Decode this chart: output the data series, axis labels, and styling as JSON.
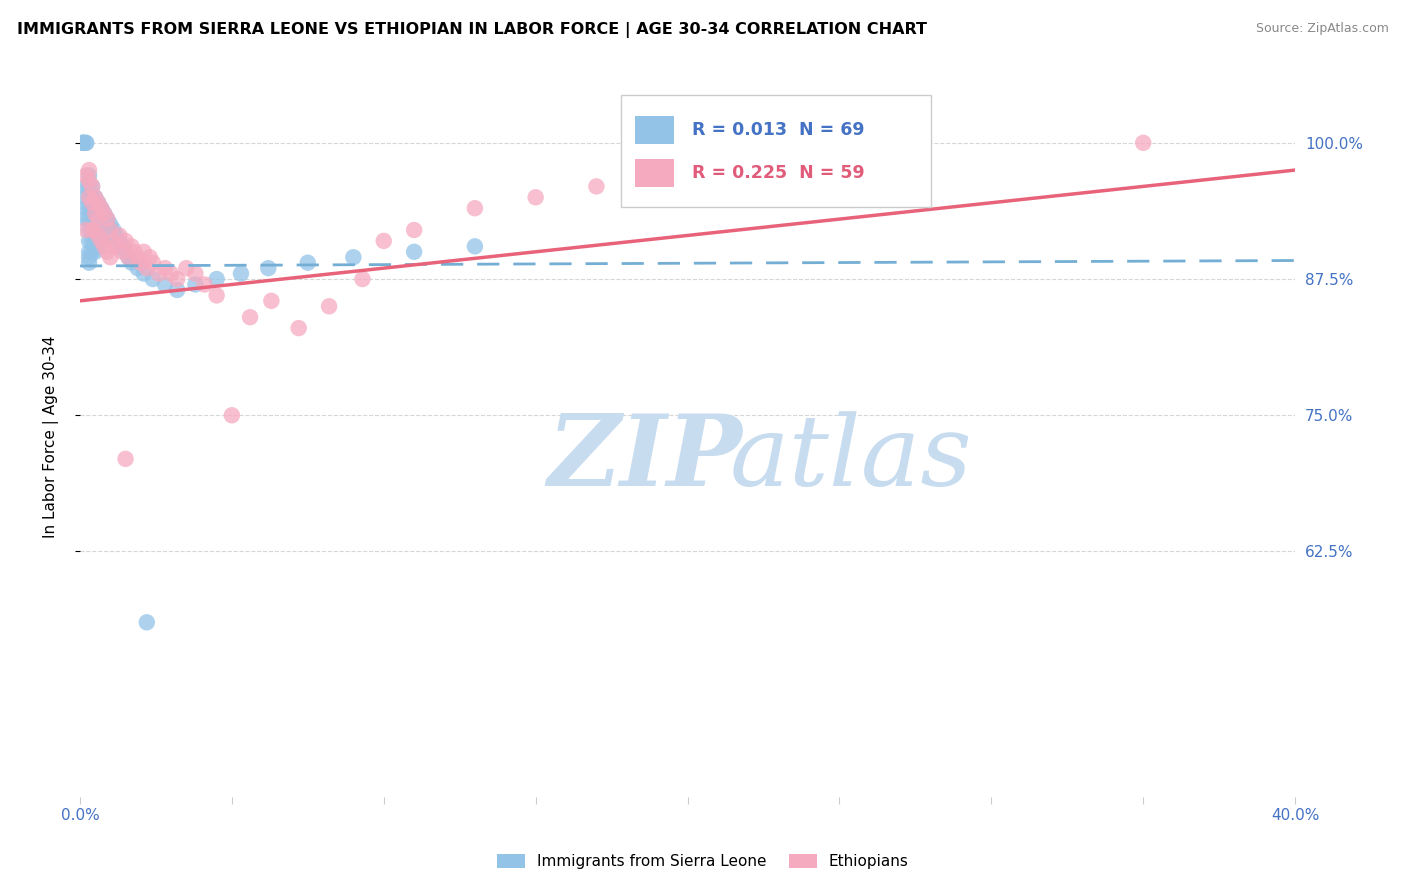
{
  "title": "IMMIGRANTS FROM SIERRA LEONE VS ETHIOPIAN IN LABOR FORCE | AGE 30-34 CORRELATION CHART",
  "source": "Source: ZipAtlas.com",
  "ylabel": "In Labor Force | Age 30-34",
  "xlim": [
    0.0,
    0.4
  ],
  "ylim": [
    0.4,
    1.06
  ],
  "yticks": [
    0.625,
    0.75,
    0.875,
    1.0
  ],
  "ytick_labels": [
    "62.5%",
    "75.0%",
    "87.5%",
    "100.0%"
  ],
  "xticks": [
    0.0,
    0.05,
    0.1,
    0.15,
    0.2,
    0.25,
    0.3,
    0.35,
    0.4
  ],
  "xtick_labels": [
    "0.0%",
    "",
    "",
    "",
    "",
    "",
    "",
    "",
    "40.0%"
  ],
  "sierra_leone_color": "#93C4E8",
  "ethiopian_color": "#F5AABF",
  "sierra_leone_line_color": "#74AED4",
  "ethiopian_line_color": "#E8637A",
  "sierra_leone_x": [
    0.001,
    0.001,
    0.001,
    0.002,
    0.002,
    0.002,
    0.002,
    0.002,
    0.002,
    0.003,
    0.003,
    0.003,
    0.003,
    0.003,
    0.003,
    0.003,
    0.003,
    0.003,
    0.003,
    0.004,
    0.004,
    0.004,
    0.004,
    0.004,
    0.004,
    0.004,
    0.005,
    0.005,
    0.005,
    0.005,
    0.005,
    0.005,
    0.006,
    0.006,
    0.006,
    0.006,
    0.006,
    0.007,
    0.007,
    0.007,
    0.007,
    0.008,
    0.008,
    0.008,
    0.009,
    0.009,
    0.01,
    0.01,
    0.011,
    0.012,
    0.013,
    0.014,
    0.015,
    0.016,
    0.017,
    0.019,
    0.021,
    0.024,
    0.028,
    0.032,
    0.038,
    0.045,
    0.053,
    0.062,
    0.075,
    0.09,
    0.11,
    0.13,
    0.022
  ],
  "sierra_leone_y": [
    1.0,
    1.0,
    1.0,
    1.0,
    1.0,
    0.96,
    0.95,
    0.94,
    0.93,
    0.97,
    0.96,
    0.95,
    0.94,
    0.93,
    0.92,
    0.91,
    0.9,
    0.895,
    0.89,
    0.96,
    0.95,
    0.94,
    0.93,
    0.92,
    0.91,
    0.9,
    0.95,
    0.94,
    0.93,
    0.92,
    0.91,
    0.9,
    0.945,
    0.935,
    0.925,
    0.915,
    0.905,
    0.94,
    0.93,
    0.92,
    0.91,
    0.935,
    0.925,
    0.915,
    0.93,
    0.92,
    0.925,
    0.915,
    0.92,
    0.915,
    0.91,
    0.905,
    0.9,
    0.895,
    0.89,
    0.885,
    0.88,
    0.875,
    0.87,
    0.865,
    0.87,
    0.875,
    0.88,
    0.885,
    0.89,
    0.895,
    0.9,
    0.905,
    0.56
  ],
  "ethiopian_x": [
    0.002,
    0.002,
    0.003,
    0.003,
    0.003,
    0.004,
    0.004,
    0.004,
    0.005,
    0.005,
    0.005,
    0.006,
    0.006,
    0.006,
    0.007,
    0.007,
    0.008,
    0.008,
    0.009,
    0.009,
    0.01,
    0.01,
    0.011,
    0.012,
    0.013,
    0.014,
    0.015,
    0.016,
    0.017,
    0.018,
    0.019,
    0.02,
    0.021,
    0.022,
    0.023,
    0.024,
    0.026,
    0.028,
    0.03,
    0.032,
    0.035,
    0.038,
    0.041,
    0.045,
    0.05,
    0.056,
    0.063,
    0.072,
    0.082,
    0.093,
    0.1,
    0.11,
    0.13,
    0.15,
    0.17,
    0.195,
    0.22,
    0.35,
    0.015
  ],
  "ethiopian_y": [
    0.92,
    0.97,
    0.95,
    0.965,
    0.975,
    0.92,
    0.945,
    0.96,
    0.935,
    0.95,
    0.92,
    0.945,
    0.93,
    0.915,
    0.94,
    0.91,
    0.935,
    0.905,
    0.93,
    0.9,
    0.92,
    0.895,
    0.91,
    0.905,
    0.915,
    0.9,
    0.91,
    0.895,
    0.905,
    0.9,
    0.895,
    0.89,
    0.9,
    0.885,
    0.895,
    0.89,
    0.88,
    0.885,
    0.88,
    0.875,
    0.885,
    0.88,
    0.87,
    0.86,
    0.75,
    0.84,
    0.855,
    0.83,
    0.85,
    0.875,
    0.91,
    0.92,
    0.94,
    0.95,
    0.96,
    0.97,
    0.985,
    1.0,
    0.71
  ],
  "legend_text1": "R = 0.013  N = 69",
  "legend_text2": "R = 0.225  N = 59",
  "legend_color1": "#4472C4",
  "legend_color2": "#E05C7A",
  "watermark_zip_color": "#C8DCF0",
  "watermark_atlas_color": "#C8DCF0"
}
